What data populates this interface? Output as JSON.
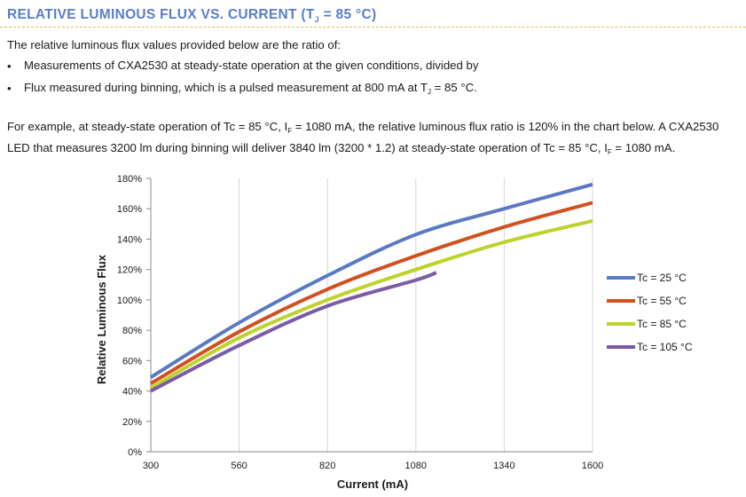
{
  "heading": {
    "prefix": "RELATIVE LUMINOUS FLUX VS. CURRENT (T",
    "sub": "J",
    "suffix": " = 85 °C)"
  },
  "intro": "The relative luminous flux values provided below are the ratio of:",
  "bullets": [
    {
      "symbol": "•",
      "text": "Measurements of CXA2530 at steady-state operation at the given conditions, divided by"
    },
    {
      "symbol": "•",
      "pre": "Flux measured during binning, which is a pulsed measurement at 800 mA at T",
      "sub": "J",
      "post": " = 85 °C."
    }
  ],
  "example": {
    "line1_pre": "For example, at steady-state operation of Tc = 85 °C, I",
    "line1_sub": "F",
    "line1_post": " = 1080 mA, the relative luminous flux ratio is 120% in the chart below. A CXA2530",
    "line2_pre": "LED that measures 3200 lm during binning will deliver 3840 lm (3200 * 1.2) at steady-state operation of Tc = 85 °C, I",
    "line2_sub": "F",
    "line2_post": " = 1080 mA."
  },
  "chart_data": {
    "type": "line",
    "xlabel": "Current (mA)",
    "ylabel": "Relative Luminous Flux",
    "xlim": [
      300,
      1600
    ],
    "ylim": [
      0,
      180
    ],
    "x_ticks": [
      "300",
      "560",
      "820",
      "1080",
      "1340",
      "1600"
    ],
    "y_ticks": [
      "0%",
      "20%",
      "40%",
      "60%",
      "80%",
      "100%",
      "120%",
      "140%",
      "160%",
      "180%"
    ],
    "grid": "vertical",
    "legend": "right",
    "series": [
      {
        "name": "Tc = 25 °C",
        "color": "#5b78c4",
        "x": [
          300,
          560,
          820,
          1080,
          1340,
          1600
        ],
        "y": [
          49,
          85,
          116,
          143,
          160,
          176
        ]
      },
      {
        "name": "Tc = 55 °C",
        "color": "#d1501f",
        "x": [
          300,
          560,
          820,
          1080,
          1340,
          1600
        ],
        "y": [
          45,
          79,
          107,
          129,
          148,
          164
        ]
      },
      {
        "name": "Tc = 85 °C",
        "color": "#bdd22a",
        "x": [
          300,
          560,
          820,
          1080,
          1340,
          1600
        ],
        "y": [
          42,
          75,
          100,
          120,
          138,
          152
        ]
      },
      {
        "name": "Tc = 105 °C",
        "color": "#7b5ba6",
        "x": [
          300,
          560,
          820,
          1080,
          1140
        ],
        "y": [
          40,
          70,
          96,
          113,
          118
        ]
      }
    ]
  }
}
